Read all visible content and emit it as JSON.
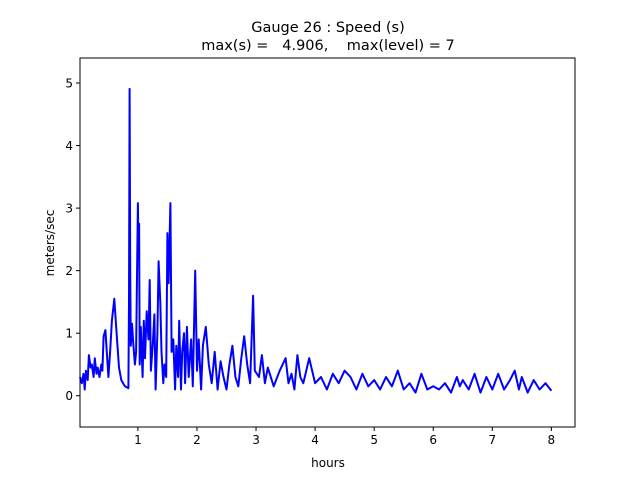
{
  "chart_data": {
    "type": "line",
    "title": "Gauge 26 : Speed (s)",
    "subtitle": "max(s) =   4.906,    max(level) = 7",
    "xlabel": "hours",
    "ylabel": "meters/sec",
    "xlim": [
      0.02,
      8.4
    ],
    "ylim": [
      -0.5,
      5.4
    ],
    "xticks": [
      1,
      2,
      3,
      4,
      5,
      6,
      7,
      8
    ],
    "yticks": [
      0,
      1,
      2,
      3,
      4,
      5
    ],
    "grid": false,
    "series": [
      {
        "name": "speed",
        "color": "#0000ff",
        "x": [
          0.02,
          0.05,
          0.08,
          0.1,
          0.12,
          0.15,
          0.17,
          0.2,
          0.22,
          0.25,
          0.27,
          0.3,
          0.32,
          0.35,
          0.38,
          0.4,
          0.42,
          0.45,
          0.5,
          0.53,
          0.56,
          0.6,
          0.64,
          0.68,
          0.72,
          0.78,
          0.84,
          0.85,
          0.86,
          0.87,
          0.88,
          0.9,
          0.92,
          0.95,
          0.97,
          1.0,
          1.01,
          1.02,
          1.03,
          1.05,
          1.08,
          1.1,
          1.12,
          1.15,
          1.18,
          1.2,
          1.22,
          1.25,
          1.28,
          1.3,
          1.33,
          1.35,
          1.38,
          1.4,
          1.43,
          1.45,
          1.48,
          1.5,
          1.52,
          1.55,
          1.57,
          1.6,
          1.63,
          1.65,
          1.68,
          1.7,
          1.73,
          1.75,
          1.78,
          1.8,
          1.83,
          1.86,
          1.9,
          1.93,
          1.97,
          2.0,
          2.03,
          2.07,
          2.1,
          2.15,
          2.2,
          2.25,
          2.3,
          2.35,
          2.4,
          2.45,
          2.5,
          2.55,
          2.6,
          2.65,
          2.7,
          2.75,
          2.8,
          2.85,
          2.9,
          2.95,
          2.98,
          3.05,
          3.1,
          3.15,
          3.2,
          3.3,
          3.4,
          3.5,
          3.55,
          3.6,
          3.65,
          3.7,
          3.75,
          3.8,
          3.9,
          4.0,
          4.1,
          4.2,
          4.3,
          4.4,
          4.5,
          4.6,
          4.7,
          4.8,
          4.9,
          5.0,
          5.1,
          5.2,
          5.3,
          5.4,
          5.5,
          5.6,
          5.7,
          5.8,
          5.9,
          6.0,
          6.1,
          6.2,
          6.3,
          6.4,
          6.45,
          6.5,
          6.6,
          6.7,
          6.8,
          6.9,
          7.0,
          7.1,
          7.2,
          7.3,
          7.38,
          7.45,
          7.5,
          7.6,
          7.7,
          7.8,
          7.9,
          8.0
        ],
        "y": [
          0.3,
          0.2,
          0.35,
          0.1,
          0.4,
          0.25,
          0.65,
          0.45,
          0.5,
          0.3,
          0.6,
          0.35,
          0.45,
          0.3,
          0.5,
          0.4,
          0.95,
          1.05,
          0.3,
          0.7,
          1.2,
          1.55,
          1.0,
          0.45,
          0.25,
          0.15,
          0.12,
          1.5,
          4.906,
          2.0,
          0.8,
          1.15,
          0.85,
          0.5,
          0.7,
          3.08,
          2.2,
          2.75,
          0.5,
          1.1,
          0.3,
          1.2,
          0.6,
          1.35,
          0.9,
          1.85,
          0.4,
          0.8,
          1.3,
          0.1,
          1.0,
          2.15,
          1.5,
          0.7,
          0.2,
          0.5,
          0.3,
          2.6,
          1.8,
          3.08,
          0.7,
          0.9,
          0.1,
          0.8,
          0.3,
          1.2,
          0.1,
          0.7,
          1.0,
          0.2,
          1.1,
          0.3,
          0.9,
          0.15,
          2.0,
          0.4,
          0.9,
          0.1,
          0.8,
          1.1,
          0.5,
          0.2,
          0.7,
          0.1,
          0.55,
          0.3,
          0.1,
          0.5,
          0.8,
          0.3,
          0.15,
          0.6,
          0.95,
          0.5,
          0.2,
          1.6,
          0.4,
          0.3,
          0.65,
          0.2,
          0.45,
          0.15,
          0.4,
          0.6,
          0.2,
          0.35,
          0.1,
          0.65,
          0.3,
          0.2,
          0.6,
          0.2,
          0.3,
          0.1,
          0.35,
          0.2,
          0.4,
          0.3,
          0.1,
          0.35,
          0.15,
          0.25,
          0.1,
          0.3,
          0.15,
          0.4,
          0.1,
          0.2,
          0.05,
          0.35,
          0.1,
          0.15,
          0.1,
          0.2,
          0.05,
          0.3,
          0.15,
          0.25,
          0.1,
          0.35,
          0.05,
          0.3,
          0.1,
          0.35,
          0.1,
          0.25,
          0.4,
          0.1,
          0.3,
          0.05,
          0.25,
          0.1,
          0.2,
          0.08
        ]
      }
    ]
  }
}
